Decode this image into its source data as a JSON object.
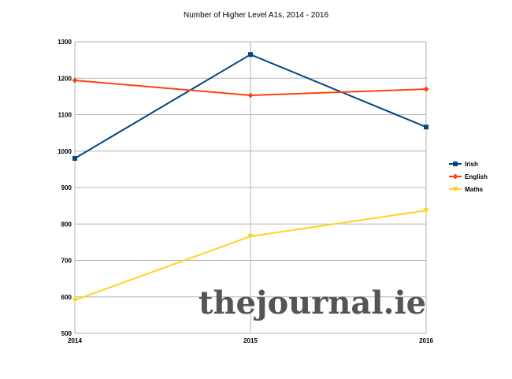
{
  "chart_data": {
    "type": "line",
    "title": "Number of Higher Level A1s, 2014 - 2016",
    "xlabel": "",
    "ylabel": "",
    "categories": [
      "2014",
      "2015",
      "2016"
    ],
    "ylim": [
      500,
      1300
    ],
    "yticks": [
      500,
      600,
      700,
      800,
      900,
      1000,
      1100,
      1200,
      1300
    ],
    "grid": true,
    "legend_position": "right",
    "series": [
      {
        "name": "Irish",
        "color": "#004586",
        "marker": "square",
        "values": [
          980,
          1265,
          1066
        ]
      },
      {
        "name": "English",
        "color": "#ff420e",
        "marker": "diamond",
        "values": [
          1194,
          1153,
          1170
        ]
      },
      {
        "name": "Maths",
        "color": "#ffd320",
        "marker": "triangle",
        "values": [
          591,
          766,
          837
        ]
      }
    ]
  },
  "watermark": "thejournal.ie"
}
